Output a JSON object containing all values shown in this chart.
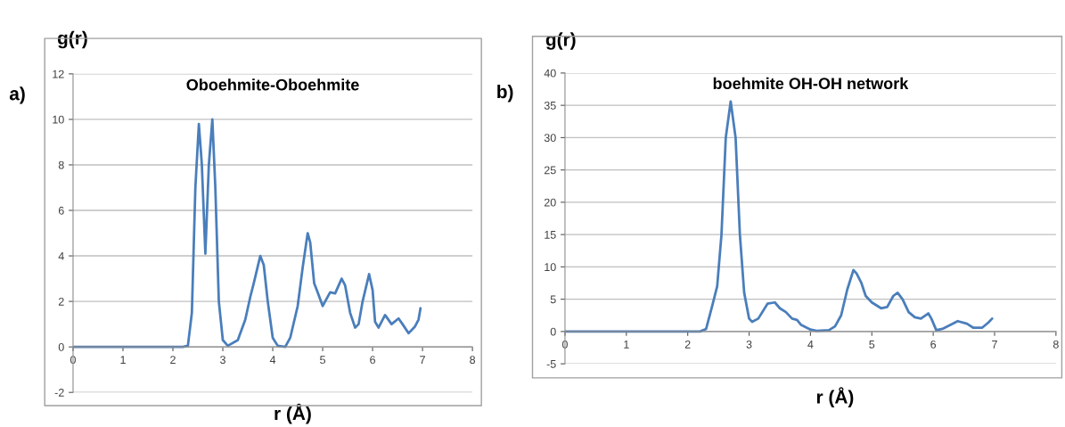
{
  "chart_data": [
    {
      "type": "line",
      "title": "Oboehmite-Oboehmite",
      "xlabel": "r (Å)",
      "ylabel": "g(r)",
      "annotations": [
        "a)"
      ],
      "x": [
        0,
        2.2,
        2.3,
        2.38,
        2.45,
        2.52,
        2.58,
        2.65,
        2.72,
        2.79,
        2.85,
        2.92,
        3.0,
        3.1,
        3.3,
        3.45,
        3.55,
        3.62,
        3.75,
        3.82,
        3.9,
        4.0,
        4.1,
        4.25,
        4.35,
        4.5,
        4.6,
        4.7,
        4.75,
        4.83,
        4.9,
        5.0,
        5.05,
        5.15,
        5.25,
        5.38,
        5.45,
        5.55,
        5.65,
        5.72,
        5.8,
        5.93,
        6.0,
        6.05,
        6.12,
        6.25,
        6.38,
        6.52,
        6.6,
        6.72,
        6.85,
        6.92,
        6.96
      ],
      "series": [
        {
          "color": "#4a7ebb",
          "values": [
            0,
            0,
            0.05,
            1.5,
            7,
            9.8,
            8,
            4.1,
            8,
            10,
            7,
            2,
            0.3,
            0.05,
            0.3,
            1.2,
            2.2,
            2.8,
            4.0,
            3.6,
            2,
            0.4,
            0.05,
            0,
            0.4,
            1.8,
            3.5,
            5.0,
            4.6,
            2.8,
            2.4,
            1.8,
            2.0,
            2.4,
            2.35,
            3.0,
            2.7,
            1.5,
            0.85,
            1.0,
            2.0,
            3.2,
            2.5,
            1.1,
            0.85,
            1.4,
            1.0,
            1.25,
            1.0,
            0.6,
            0.9,
            1.2,
            1.7
          ]
        }
      ],
      "xlim": [
        0,
        8
      ],
      "xticks": [
        0,
        1,
        2,
        3,
        4,
        5,
        6,
        7,
        8
      ],
      "ylim": [
        -2,
        12
      ],
      "yticks": [
        -2,
        0,
        2,
        4,
        6,
        8,
        10,
        12
      ],
      "grid": "y",
      "marker": "none",
      "line_style": "solid"
    },
    {
      "type": "line",
      "title": "boehmite OH-OH network",
      "xlabel": "r (Å)",
      "ylabel": "g(r)",
      "annotations": [
        "b)"
      ],
      "x": [
        0,
        2.2,
        2.3,
        2.4,
        2.48,
        2.55,
        2.62,
        2.7,
        2.78,
        2.85,
        2.92,
        3.0,
        3.05,
        3.15,
        3.3,
        3.42,
        3.5,
        3.6,
        3.7,
        3.78,
        3.85,
        4.0,
        4.1,
        4.3,
        4.4,
        4.5,
        4.6,
        4.7,
        4.75,
        4.83,
        4.9,
        5.0,
        5.15,
        5.25,
        5.35,
        5.42,
        5.5,
        5.6,
        5.7,
        5.8,
        5.92,
        5.97,
        6.05,
        6.15,
        6.4,
        6.55,
        6.65,
        6.8,
        6.9,
        6.96
      ],
      "series": [
        {
          "color": "#4a7ebb",
          "values": [
            0,
            0,
            0.4,
            4,
            7,
            15,
            30,
            35.6,
            30,
            15,
            6,
            2,
            1.5,
            2,
            4.3,
            4.5,
            3.6,
            3,
            2,
            1.8,
            1,
            0.3,
            0.1,
            0.2,
            0.8,
            2.5,
            6.5,
            9.5,
            9,
            7.5,
            5.5,
            4.5,
            3.6,
            3.8,
            5.5,
            6,
            5,
            3,
            2.2,
            2,
            2.8,
            2,
            0.2,
            0.4,
            1.6,
            1.2,
            0.6,
            0.6,
            1.4,
            2
          ]
        }
      ],
      "xlim": [
        0,
        8
      ],
      "xticks": [
        0,
        1,
        2,
        3,
        4,
        5,
        6,
        7,
        8
      ],
      "ylim": [
        -5,
        40
      ],
      "yticks": [
        -5,
        0,
        5,
        10,
        15,
        20,
        25,
        30,
        35,
        40
      ],
      "grid": "y",
      "marker": "none",
      "line_style": "solid"
    }
  ]
}
